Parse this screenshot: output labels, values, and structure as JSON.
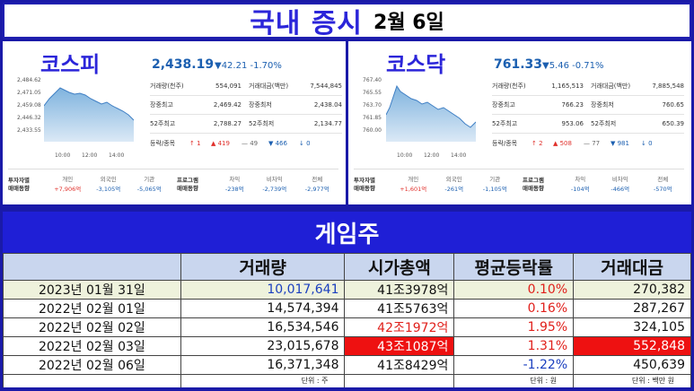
{
  "title": {
    "main": "국내 증시",
    "date": "2월 6일"
  },
  "kospi": {
    "name": "코스피",
    "index": "2,438.19",
    "change": "▼42.21  -1.70%",
    "y_ticks": [
      "2,484.62",
      "2,471.05",
      "2,459.08",
      "2,446.32",
      "2,433.55"
    ],
    "x_ticks": [
      "10:00",
      "12:00",
      "14:00"
    ],
    "stats": [
      {
        "k1": "거래량(천주)",
        "v1": "554,091",
        "k2": "거래대금(백만)",
        "v2": "7,544,845"
      },
      {
        "k1": "장중최고",
        "v1": "2,469.42",
        "k2": "장중최저",
        "v2": "2,438.04"
      },
      {
        "k1": "52주최고",
        "v1": "2,788.27",
        "k2": "52주최저",
        "v2": "2,134.77"
      }
    ],
    "updown": {
      "label": "등락/종목",
      "up_limit": "↑ 1",
      "up": "▲ 419",
      "same": "— 49",
      "down": "▼ 466",
      "down_limit": "↓ 0"
    },
    "investor": {
      "label1": "투자자별",
      "label2": "매매동향",
      "cells": [
        {
          "k": "개인",
          "v": "+7,906억",
          "c": "red"
        },
        {
          "k": "외국인",
          "v": "-3,105억",
          "c": "blue"
        },
        {
          "k": "기관",
          "v": "-5,065억",
          "c": "blue"
        }
      ],
      "prog1": "프로그램",
      "prog2": "매매동향",
      "pcells": [
        {
          "k": "차익",
          "v": "-238억",
          "c": "blue"
        },
        {
          "k": "비차익",
          "v": "-2,739억",
          "c": "blue"
        },
        {
          "k": "전체",
          "v": "-2,977억",
          "c": "blue"
        }
      ]
    }
  },
  "kosdaq": {
    "name": "코스닥",
    "index": "761.33",
    "change": "▼5.46  -0.71%",
    "y_ticks": [
      "767.40",
      "765.55",
      "763.70",
      "761.85",
      "760.00"
    ],
    "x_ticks": [
      "10:00",
      "12:00",
      "14:00"
    ],
    "stats": [
      {
        "k1": "거래량(천주)",
        "v1": "1,165,513",
        "k2": "거래대금(백만)",
        "v2": "7,885,548"
      },
      {
        "k1": "장중최고",
        "v1": "766.23",
        "k2": "장중최저",
        "v2": "760.65"
      },
      {
        "k1": "52주최고",
        "v1": "953.06",
        "k2": "52주최저",
        "v2": "650.39"
      }
    ],
    "updown": {
      "label": "등락/종목",
      "up_limit": "↑ 2",
      "up": "▲ 508",
      "same": "— 77",
      "down": "▼ 981",
      "down_limit": "↓ 0"
    },
    "investor": {
      "label1": "투자자별",
      "label2": "매매동향",
      "cells": [
        {
          "k": "개인",
          "v": "+1,601억",
          "c": "red"
        },
        {
          "k": "외국인",
          "v": "-261억",
          "c": "blue"
        },
        {
          "k": "기관",
          "v": "-1,105억",
          "c": "blue"
        }
      ],
      "prog1": "프로그램",
      "prog2": "매매동향",
      "pcells": [
        {
          "k": "차익",
          "v": "-104억",
          "c": "blue"
        },
        {
          "k": "비차익",
          "v": "-466억",
          "c": "blue"
        },
        {
          "k": "전체",
          "v": "-570억",
          "c": "blue"
        }
      ]
    }
  },
  "game": {
    "header": "게임주",
    "columns": [
      "",
      "거래량",
      "시가총액",
      "평균등락률",
      "거래대금"
    ],
    "rows": [
      {
        "date": "2023년 01월 31일",
        "volume": "10,017,641",
        "mcap": "41조3978억",
        "avg": "0.10%",
        "value": "270,382"
      },
      {
        "date": "2022년 02월 01일",
        "volume": "14,574,394",
        "mcap": "41조5763억",
        "avg": "0.16%",
        "value": "287,267"
      },
      {
        "date": "2022년 02월 02일",
        "volume": "16,534,546",
        "mcap": "42조1972억",
        "avg": "1.95%",
        "value": "324,105"
      },
      {
        "date": "2022년 02월 03일",
        "volume": "23,015,678",
        "mcap": "43조1087억",
        "avg": "1.31%",
        "value": "552,848"
      },
      {
        "date": "2022년 02월 06일",
        "volume": "16,371,348",
        "mcap": "41조8429억",
        "avg": "-1.22%",
        "value": "450,639"
      }
    ],
    "units": {
      "volume": "단위 : 주",
      "mcap": "단위 : 원",
      "value": "단위 : 백만 원"
    }
  },
  "colors": {
    "brand": "#2b25d9",
    "header_bg": "#1f1fd6",
    "up": "#e0302b",
    "down": "#1b5fb0",
    "highlight": "#ee1111"
  }
}
